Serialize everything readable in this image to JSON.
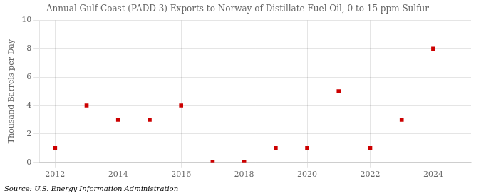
{
  "chart_data": {
    "type": "scatter",
    "title": "Annual Gulf Coast (PADD 3) Exports to Norway of Distillate Fuel Oil, 0 to 15 ppm Sulfur",
    "y_label": "Thousand Barrels per Day",
    "annotation": "Source: U.S. Energy Information Administration",
    "x": [
      2012,
      2013,
      2014,
      2015,
      2016,
      2017,
      2018,
      2019,
      2020,
      2021,
      2022,
      2023,
      2024
    ],
    "values": [
      1,
      4,
      3,
      3,
      4,
      0.05,
      0.05,
      1,
      1,
      5,
      1,
      3,
      8
    ],
    "color": "#cc0000",
    "marker": "square",
    "xlim": [
      2011.5,
      2025.2
    ],
    "xticks": [
      2012,
      2014,
      2016,
      2018,
      2020,
      2022,
      2024
    ],
    "ylim": [
      0,
      10
    ],
    "yticks": [
      0,
      2,
      4,
      6,
      8,
      10
    ],
    "grid": true
  }
}
